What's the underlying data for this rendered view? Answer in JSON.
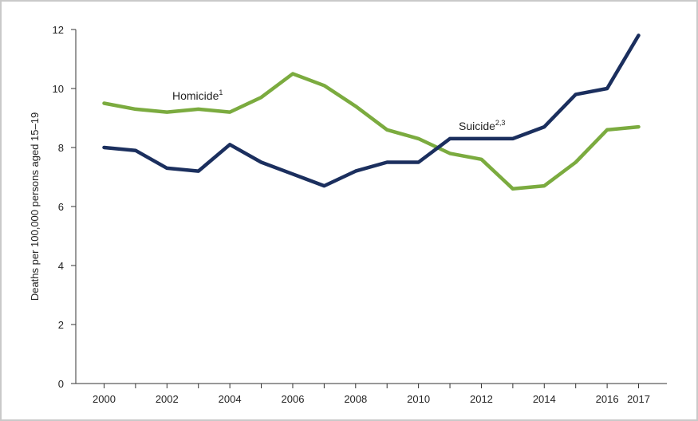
{
  "chart_data": {
    "type": "line",
    "title": "",
    "xlabel": "",
    "ylabel": "Deaths per 100,000 persons aged 15–19",
    "ylim": [
      0,
      12
    ],
    "yticks": [
      0,
      2,
      4,
      6,
      8,
      10,
      12
    ],
    "xlim": [
      1999.1,
      2017.9
    ],
    "x": [
      2000,
      2001,
      2002,
      2003,
      2004,
      2005,
      2006,
      2007,
      2008,
      2009,
      2010,
      2011,
      2012,
      2013,
      2014,
      2015,
      2016,
      2017
    ],
    "xtick_labels": [
      "2000",
      "2002",
      "2004",
      "2006",
      "2008",
      "2010",
      "2012",
      "2014",
      "2016",
      "2017"
    ],
    "grid": false,
    "legend": "none (series labeled directly on lines)",
    "series": [
      {
        "name": "Homicide",
        "name_sup": "1",
        "color": "#7bab3f",
        "values": [
          9.5,
          9.3,
          9.2,
          9.3,
          9.2,
          9.7,
          10.5,
          10.1,
          9.4,
          8.6,
          8.3,
          7.8,
          7.6,
          6.6,
          6.7,
          7.5,
          8.6,
          8.7
        ]
      },
      {
        "name": "Suicide",
        "name_sup": "2,3",
        "color": "#1b2f5e",
        "values": [
          8.0,
          7.9,
          7.3,
          7.2,
          8.1,
          7.5,
          7.1,
          6.7,
          7.2,
          7.5,
          7.5,
          8.3,
          8.3,
          8.3,
          8.7,
          9.8,
          10.0,
          11.8
        ]
      }
    ]
  }
}
